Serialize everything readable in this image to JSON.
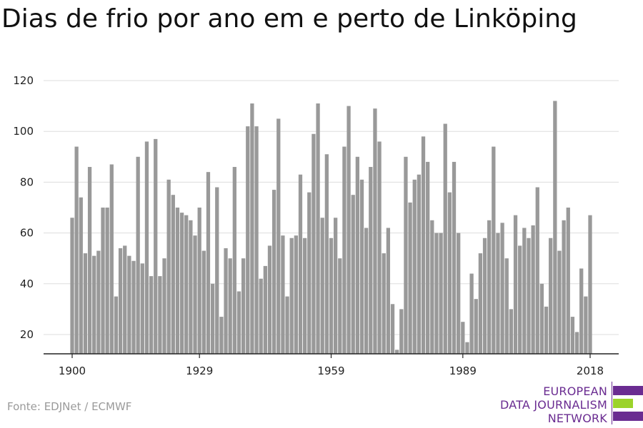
{
  "title": "Dias de frio por ano em e perto de Linköping",
  "source": "Fonte: EDJNet / ECMWF",
  "logo": {
    "lines": [
      "EUROPEAN",
      "DATA JOURNALISM",
      "NETWORK"
    ],
    "colors": {
      "purple": "#6a2c91",
      "green": "#9bd32a"
    }
  },
  "colors": {
    "bar": "#999999",
    "grid": "#dddddd",
    "axis": "#222222"
  },
  "chart_data": {
    "type": "bar",
    "title": "Dias de frio por ano em e perto de Linköping",
    "xlabel": "",
    "ylabel": "",
    "ylim": [
      12,
      120
    ],
    "yticks": [
      20,
      40,
      60,
      80,
      100,
      120
    ],
    "xticks": [
      1900,
      1929,
      1959,
      1989,
      2018
    ],
    "grid": true,
    "x": [
      1900,
      1901,
      1902,
      1903,
      1904,
      1905,
      1906,
      1907,
      1908,
      1909,
      1910,
      1911,
      1912,
      1913,
      1914,
      1915,
      1916,
      1917,
      1918,
      1919,
      1920,
      1921,
      1922,
      1923,
      1924,
      1925,
      1926,
      1927,
      1928,
      1929,
      1930,
      1931,
      1932,
      1933,
      1934,
      1935,
      1936,
      1937,
      1938,
      1939,
      1940,
      1941,
      1942,
      1943,
      1944,
      1945,
      1946,
      1947,
      1948,
      1949,
      1950,
      1951,
      1952,
      1953,
      1954,
      1955,
      1956,
      1957,
      1958,
      1959,
      1960,
      1961,
      1962,
      1963,
      1964,
      1965,
      1966,
      1967,
      1968,
      1969,
      1970,
      1971,
      1972,
      1973,
      1974,
      1975,
      1976,
      1977,
      1978,
      1979,
      1980,
      1981,
      1982,
      1983,
      1984,
      1985,
      1986,
      1987,
      1988,
      1989,
      1990,
      1991,
      1992,
      1993,
      1994,
      1995,
      1996,
      1997,
      1998,
      1999,
      2000,
      2001,
      2002,
      2003,
      2004,
      2005,
      2006,
      2007,
      2008,
      2009,
      2010,
      2011,
      2012,
      2013,
      2014,
      2015,
      2016,
      2017,
      2018
    ],
    "values": [
      66,
      94,
      74,
      52,
      86,
      51,
      53,
      70,
      70,
      87,
      35,
      54,
      55,
      51,
      49,
      90,
      48,
      96,
      43,
      97,
      43,
      50,
      81,
      75,
      70,
      68,
      67,
      65,
      59,
      70,
      53,
      84,
      40,
      78,
      27,
      54,
      50,
      86,
      37,
      50,
      102,
      111,
      102,
      42,
      47,
      55,
      77,
      105,
      59,
      35,
      58,
      59,
      83,
      58,
      76,
      99,
      111,
      66,
      91,
      58,
      66,
      50,
      94,
      110,
      75,
      90,
      81,
      62,
      86,
      109,
      96,
      52,
      62,
      32,
      14,
      30,
      90,
      72,
      81,
      83,
      98,
      88,
      65,
      60,
      60,
      103,
      76,
      88,
      60,
      25,
      17,
      44,
      34,
      52,
      58,
      65,
      94,
      60,
      64,
      50,
      30,
      67,
      55,
      62,
      58,
      63,
      78,
      40,
      31,
      58,
      112,
      53,
      65,
      70,
      27,
      21,
      46,
      35,
      67
    ]
  }
}
